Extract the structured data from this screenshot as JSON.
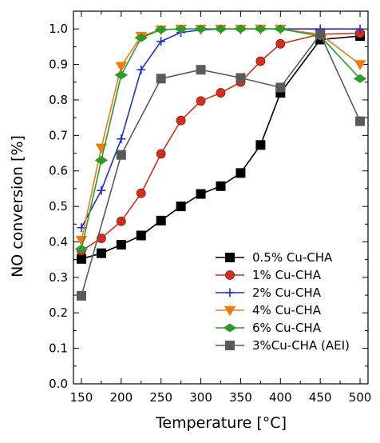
{
  "chart_data": {
    "type": "line",
    "title": "",
    "xlabel": "Temperature [°C]",
    "ylabel": "NO conversion [%]",
    "xlim": [
      140,
      510
    ],
    "ylim": [
      0.0,
      1.05
    ],
    "xticks": [
      150,
      200,
      250,
      300,
      350,
      400,
      450,
      500
    ],
    "yticks": [
      0.0,
      0.1,
      0.2,
      0.3,
      0.4,
      0.5,
      0.6,
      0.7,
      0.8,
      0.9,
      1.0
    ],
    "ytick_labels": [
      "0.0",
      "0.1",
      "0.2",
      "0.3",
      "0.4",
      "0.5",
      "0.6",
      "0.7",
      "0.8",
      "0.9",
      "1.0"
    ],
    "grid": false,
    "legend_position": "bottom-right",
    "series": [
      {
        "name": "0.5% Cu-CHA",
        "color": "#000000",
        "marker": "square",
        "x": [
          150,
          175,
          200,
          225,
          250,
          275,
          300,
          325,
          350,
          375,
          400,
          450,
          500
        ],
        "y": [
          0.352,
          0.368,
          0.392,
          0.418,
          0.46,
          0.5,
          0.535,
          0.557,
          0.594,
          0.673,
          0.82,
          0.97,
          0.98
        ]
      },
      {
        "name": "1% Cu-CHA",
        "color": "#d32f1f",
        "marker": "circle",
        "x": [
          150,
          175,
          200,
          225,
          250,
          275,
          300,
          325,
          350,
          375,
          400,
          450,
          500
        ],
        "y": [
          0.375,
          0.41,
          0.458,
          0.537,
          0.648,
          0.742,
          0.797,
          0.82,
          0.85,
          0.909,
          0.958,
          0.985,
          0.988
        ]
      },
      {
        "name": "2% Cu-CHA",
        "color": "#1a2fd6",
        "marker": "plus",
        "x": [
          150,
          175,
          200,
          225,
          250,
          275,
          300,
          325,
          350,
          375,
          400,
          450,
          500
        ],
        "y": [
          0.44,
          0.545,
          0.69,
          0.885,
          0.965,
          0.99,
          0.997,
          1.0,
          1.0,
          1.0,
          1.0,
          1.0,
          1.0
        ]
      },
      {
        "name": "4% Cu-CHA",
        "color": "#f07a10",
        "marker": "triangle-down",
        "x": [
          150,
          175,
          200,
          225,
          250,
          275,
          300,
          325,
          350,
          375,
          400,
          450,
          500
        ],
        "y": [
          0.405,
          0.665,
          0.895,
          0.98,
          0.998,
          1.0,
          1.0,
          1.0,
          1.0,
          1.0,
          1.0,
          0.985,
          0.9
        ]
      },
      {
        "name": "6% Cu-CHA",
        "color": "#2e9a2a",
        "marker": "diamond",
        "x": [
          150,
          175,
          200,
          225,
          250,
          275,
          300,
          325,
          350,
          375,
          400,
          450,
          500
        ],
        "y": [
          0.38,
          0.63,
          0.87,
          0.975,
          0.998,
          1.0,
          1.0,
          1.0,
          1.0,
          1.0,
          1.0,
          0.98,
          0.86
        ]
      },
      {
        "name": "3%Cu-CHA (AEI)",
        "color": "#5a5a5a",
        "marker": "square",
        "x": [
          150,
          200,
          250,
          300,
          350,
          400,
          450,
          500
        ],
        "y": [
          0.248,
          0.645,
          0.86,
          0.885,
          0.862,
          0.835,
          0.985,
          0.74
        ]
      }
    ]
  }
}
